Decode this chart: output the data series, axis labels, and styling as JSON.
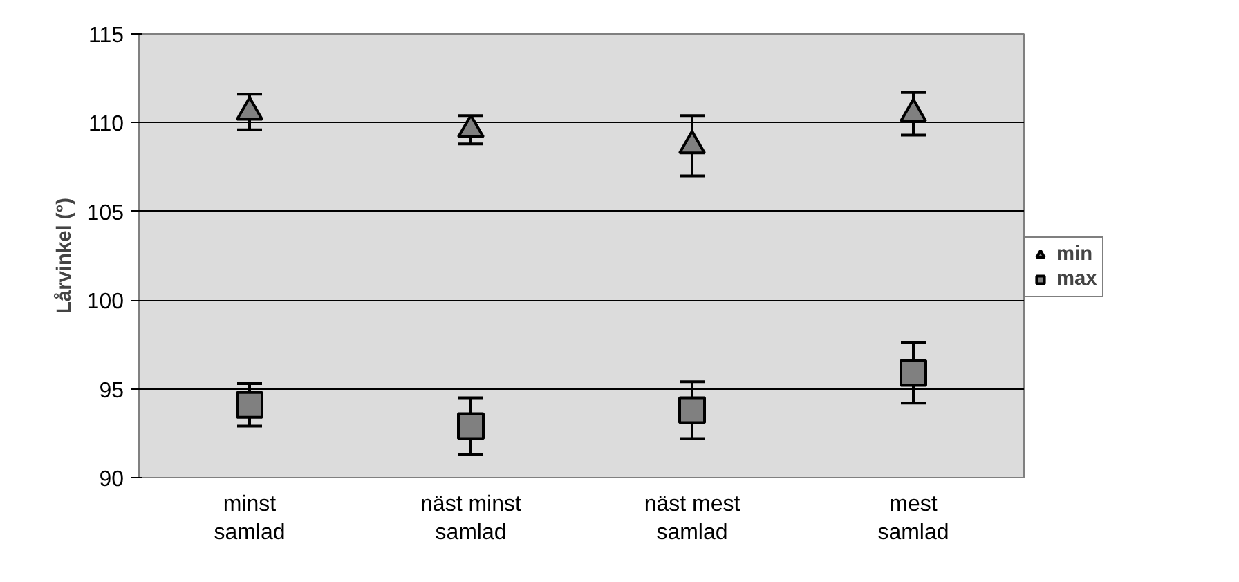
{
  "chart_data": {
    "type": "scatter",
    "ylabel": "Lårvinkel (°)",
    "categories": [
      "minst samlad",
      "näst minst samlad",
      "näst mest samlad",
      "mest samlad"
    ],
    "series": [
      {
        "name": "min",
        "color": "#808080",
        "marker": "triangle",
        "values": [
          110.6,
          109.6,
          108.7,
          110.5
        ],
        "errors": [
          1.0,
          0.8,
          1.7,
          1.2
        ]
      },
      {
        "name": "max",
        "color": "#808080",
        "marker": "square",
        "values": [
          94.1,
          92.9,
          93.8,
          95.9
        ],
        "errors": [
          1.2,
          1.6,
          1.6,
          1.7
        ]
      }
    ],
    "ylim": [
      90,
      115
    ],
    "yticks": [
      90,
      95,
      100,
      105,
      110,
      115
    ],
    "grid": "y",
    "legend": "right"
  }
}
